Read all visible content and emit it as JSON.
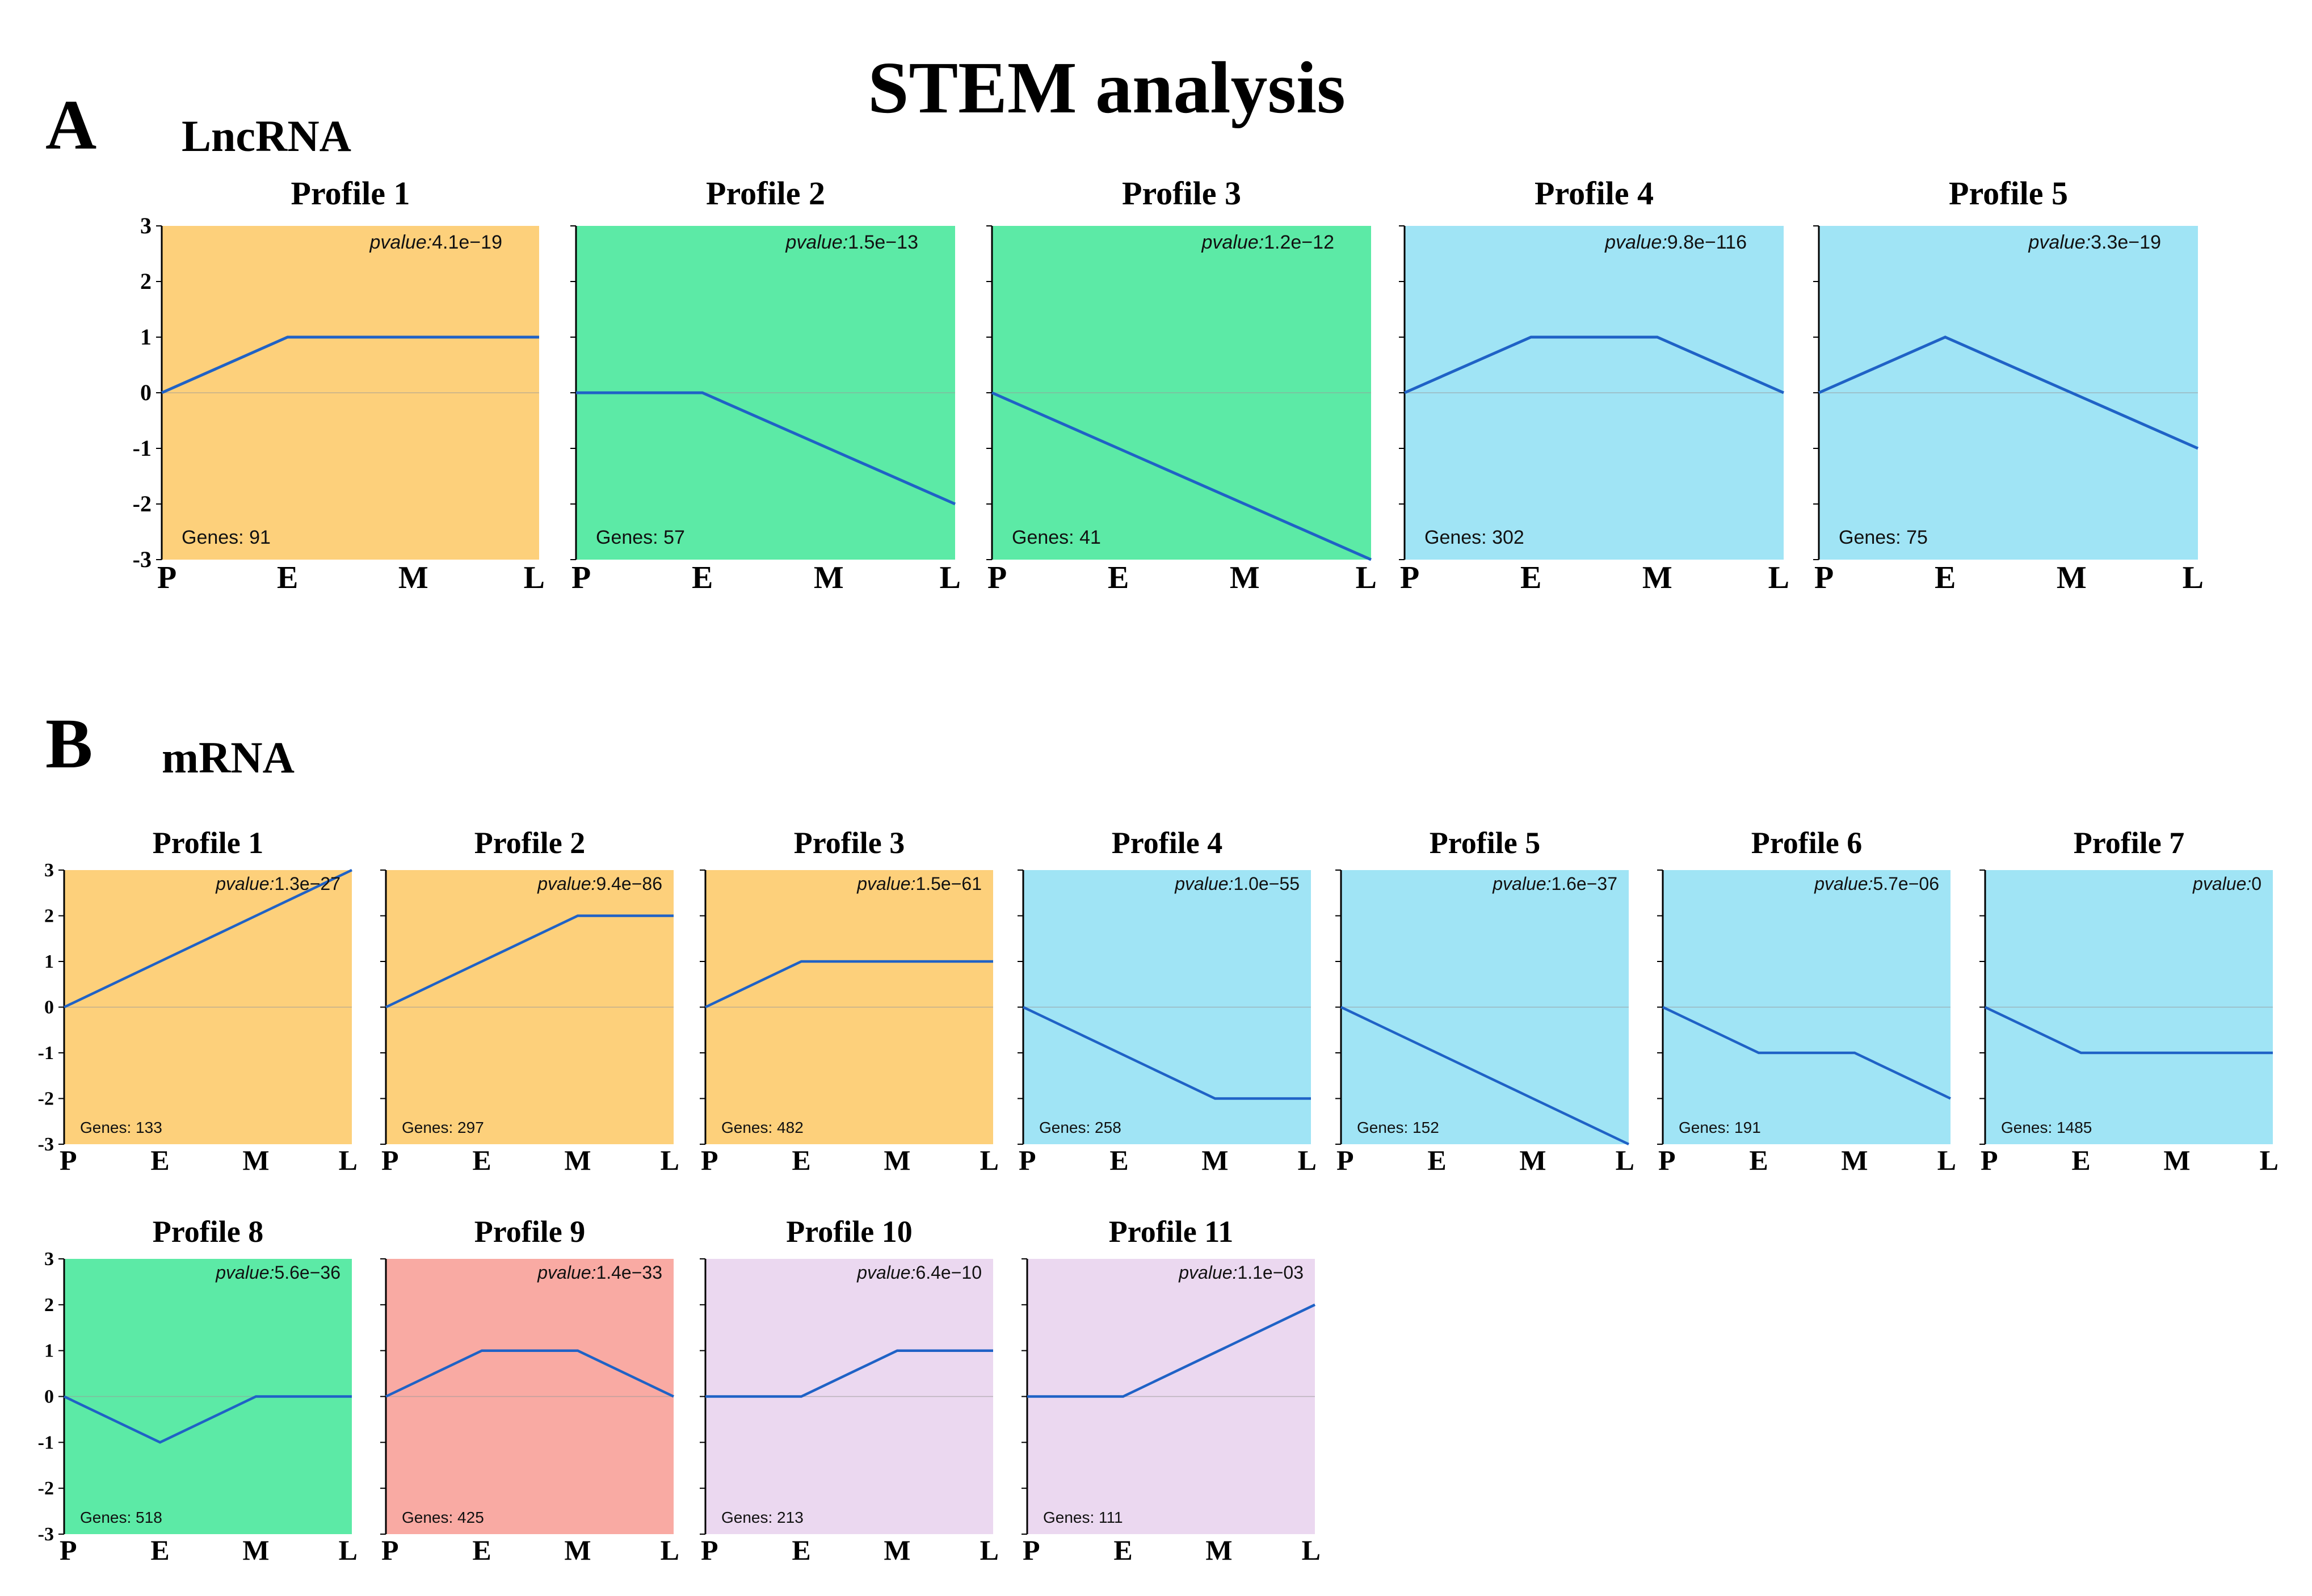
{
  "title": "STEM analysis",
  "sections": [
    {
      "letter": "A",
      "label": "LncRNA"
    },
    {
      "letter": "B",
      "label": "mRNA"
    }
  ],
  "colors": {
    "orange": "#FDD07B",
    "green": "#5CEAA6",
    "blue": "#A0E4F5",
    "red": "#F9AAA3",
    "purple": "#EBD8F0",
    "line": "#1F62C6"
  },
  "chart_data": [
    {
      "type": "line",
      "section": "LncRNA",
      "title": "Profile 1",
      "pvalue": "4.1e−19",
      "genes": "91",
      "color": "orange",
      "categories": [
        "P",
        "E",
        "M",
        "L"
      ],
      "values": [
        0,
        1,
        1,
        1
      ],
      "ylim": [
        -3,
        3
      ],
      "yticks": [
        "3",
        "2",
        "1",
        "0",
        "-1",
        "-2",
        "-3"
      ],
      "pvalue_label": "pvalue:",
      "genes_label": "Genes: "
    },
    {
      "type": "line",
      "section": "LncRNA",
      "title": "Profile 2",
      "pvalue": "1.5e−13",
      "genes": "57",
      "color": "green",
      "categories": [
        "P",
        "E",
        "M",
        "L"
      ],
      "values": [
        0,
        0,
        -1,
        -2
      ],
      "ylim": [
        -3,
        3
      ],
      "yticks": [],
      "pvalue_label": "pvalue:",
      "genes_label": "Genes: "
    },
    {
      "type": "line",
      "section": "LncRNA",
      "title": "Profile 3",
      "pvalue": "1.2e−12",
      "genes": "41",
      "color": "green",
      "categories": [
        "P",
        "E",
        "M",
        "L"
      ],
      "values": [
        0,
        -1,
        -2,
        -3
      ],
      "ylim": [
        -3,
        3
      ],
      "yticks": [],
      "pvalue_label": "pvalue:",
      "genes_label": "Genes: "
    },
    {
      "type": "line",
      "section": "LncRNA",
      "title": "Profile 4",
      "pvalue": "9.8e−116",
      "genes": "302",
      "color": "blue",
      "categories": [
        "P",
        "E",
        "M",
        "L"
      ],
      "values": [
        0,
        1,
        1,
        0
      ],
      "ylim": [
        -3,
        3
      ],
      "yticks": [],
      "pvalue_label": "pvalue:",
      "genes_label": "Genes: "
    },
    {
      "type": "line",
      "section": "LncRNA",
      "title": "Profile 5",
      "pvalue": "3.3e−19",
      "genes": "75",
      "color": "blue",
      "categories": [
        "P",
        "E",
        "M",
        "L"
      ],
      "values": [
        0,
        1,
        0,
        -1
      ],
      "ylim": [
        -3,
        3
      ],
      "yticks": [],
      "pvalue_label": "pvalue:",
      "genes_label": "Genes: "
    },
    {
      "type": "line",
      "section": "mRNA",
      "title": "Profile 1",
      "pvalue": "1.3e−27",
      "genes": "133",
      "color": "orange",
      "categories": [
        "P",
        "E",
        "M",
        "L"
      ],
      "values": [
        0,
        1,
        2,
        3
      ],
      "ylim": [
        -3,
        3
      ],
      "yticks": [
        "3",
        "2",
        "1",
        "0",
        "-1",
        "-2",
        "-3"
      ],
      "pvalue_label": "pvalue:",
      "genes_label": "Genes: "
    },
    {
      "type": "line",
      "section": "mRNA",
      "title": "Profile 2",
      "pvalue": "9.4e−86",
      "genes": "297",
      "color": "orange",
      "categories": [
        "P",
        "E",
        "M",
        "L"
      ],
      "values": [
        0,
        1,
        2,
        2
      ],
      "ylim": [
        -3,
        3
      ],
      "yticks": [],
      "pvalue_label": "pvalue:",
      "genes_label": "Genes: "
    },
    {
      "type": "line",
      "section": "mRNA",
      "title": "Profile 3",
      "pvalue": "1.5e−61",
      "genes": "482",
      "color": "orange",
      "categories": [
        "P",
        "E",
        "M",
        "L"
      ],
      "values": [
        0,
        1,
        1,
        1
      ],
      "ylim": [
        -3,
        3
      ],
      "yticks": [],
      "pvalue_label": "pvalue:",
      "genes_label": "Genes: "
    },
    {
      "type": "line",
      "section": "mRNA",
      "title": "Profile 4",
      "pvalue": "1.0e−55",
      "genes": "258",
      "color": "blue",
      "categories": [
        "P",
        "E",
        "M",
        "L"
      ],
      "values": [
        0,
        -1,
        -2,
        -2
      ],
      "ylim": [
        -3,
        3
      ],
      "yticks": [],
      "pvalue_label": "pvalue:",
      "genes_label": "Genes: "
    },
    {
      "type": "line",
      "section": "mRNA",
      "title": "Profile 5",
      "pvalue": "1.6e−37",
      "genes": "152",
      "color": "blue",
      "categories": [
        "P",
        "E",
        "M",
        "L"
      ],
      "values": [
        0,
        -1,
        -2,
        -3
      ],
      "ylim": [
        -3,
        3
      ],
      "yticks": [],
      "pvalue_label": "pvalue:",
      "genes_label": "Genes: "
    },
    {
      "type": "line",
      "section": "mRNA",
      "title": "Profile 6",
      "pvalue": "5.7e−06",
      "genes": "191",
      "color": "blue",
      "categories": [
        "P",
        "E",
        "M",
        "L"
      ],
      "values": [
        0,
        -1,
        -1,
        -2
      ],
      "ylim": [
        -3,
        3
      ],
      "yticks": [],
      "pvalue_label": "pvalue:",
      "genes_label": "Genes: "
    },
    {
      "type": "line",
      "section": "mRNA",
      "title": "Profile 7",
      "pvalue": "0",
      "genes": "1485",
      "color": "blue",
      "categories": [
        "P",
        "E",
        "M",
        "L"
      ],
      "values": [
        0,
        -1,
        -1,
        -1
      ],
      "ylim": [
        -3,
        3
      ],
      "yticks": [],
      "pvalue_label": "pvalue:",
      "genes_label": "Genes: "
    },
    {
      "type": "line",
      "section": "mRNA",
      "title": "Profile 8",
      "pvalue": "5.6e−36",
      "genes": "518",
      "color": "green",
      "categories": [
        "P",
        "E",
        "M",
        "L"
      ],
      "values": [
        0,
        -1,
        0,
        0
      ],
      "ylim": [
        -3,
        3
      ],
      "yticks": [
        "3",
        "2",
        "1",
        "0",
        "-1",
        "-2",
        "-3"
      ],
      "pvalue_label": "pvalue:",
      "genes_label": "Genes: "
    },
    {
      "type": "line",
      "section": "mRNA",
      "title": "Profile 9",
      "pvalue": "1.4e−33",
      "genes": "425",
      "color": "red",
      "categories": [
        "P",
        "E",
        "M",
        "L"
      ],
      "values": [
        0,
        1,
        1,
        0
      ],
      "ylim": [
        -3,
        3
      ],
      "yticks": [],
      "pvalue_label": "pvalue:",
      "genes_label": "Genes: "
    },
    {
      "type": "line",
      "section": "mRNA",
      "title": "Profile 10",
      "pvalue": "6.4e−10",
      "genes": "213",
      "color": "purple",
      "categories": [
        "P",
        "E",
        "M",
        "L"
      ],
      "values": [
        0,
        0,
        1,
        1
      ],
      "ylim": [
        -3,
        3
      ],
      "yticks": [],
      "pvalue_label": "pvalue:",
      "genes_label": "Genes: "
    },
    {
      "type": "line",
      "section": "mRNA",
      "title": "Profile 11",
      "pvalue": "1.1e−03",
      "genes": "111",
      "color": "purple",
      "categories": [
        "P",
        "E",
        "M",
        "L"
      ],
      "values": [
        0,
        0,
        1,
        2
      ],
      "ylim": [
        -3,
        3
      ],
      "yticks": [],
      "pvalue_label": "pvalue:",
      "genes_label": "Genes: "
    }
  ]
}
